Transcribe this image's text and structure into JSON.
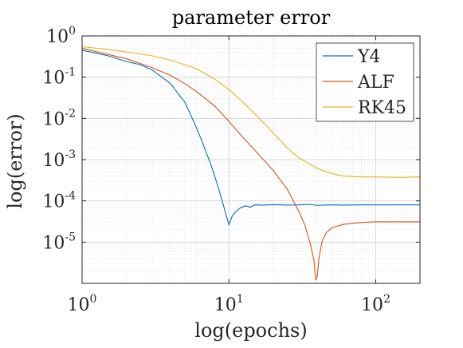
{
  "chart_data": {
    "type": "line",
    "title": "parameter error",
    "xlabel": "log(epochs)",
    "ylabel": "log(error)",
    "xscale": "log",
    "yscale": "log",
    "xlim": [
      1,
      200
    ],
    "ylim": [
      1e-06,
      1
    ],
    "grid": true,
    "minor_grid": true,
    "legend_position": "top-right",
    "x_ticks": [
      {
        "base": "10",
        "exp": "0"
      },
      {
        "base": "10",
        "exp": "1"
      },
      {
        "base": "10",
        "exp": "2"
      }
    ],
    "y_ticks": [
      {
        "value": 1,
        "base": "10",
        "exp": "0"
      },
      {
        "value": 0.1,
        "base": "10",
        "exp": "-1"
      },
      {
        "value": 0.01,
        "base": "10",
        "exp": "-2"
      },
      {
        "value": 0.001,
        "base": "10",
        "exp": "-3"
      },
      {
        "value": 0.0001,
        "base": "10",
        "exp": "-4"
      },
      {
        "value": 1e-05,
        "base": "10",
        "exp": "-5"
      }
    ],
    "series": [
      {
        "name": "Y4",
        "color": "#0072BD",
        "x": [
          1,
          1.5,
          2,
          2.5,
          3,
          3.5,
          4,
          4.5,
          5,
          5.5,
          6,
          6.5,
          7,
          7.5,
          8,
          8.5,
          9,
          9.5,
          10,
          10.5,
          11,
          11.5,
          12,
          13,
          14,
          15,
          17,
          20,
          25,
          30,
          35,
          40,
          45,
          50,
          60,
          80,
          100,
          150,
          200
        ],
        "y": [
          0.45,
          0.33,
          0.24,
          0.2,
          0.15,
          0.1,
          0.07,
          0.04,
          0.025,
          0.012,
          0.006,
          0.003,
          0.0015,
          0.0008,
          0.0004,
          0.0002,
          0.0001,
          5e-05,
          2.6e-05,
          4.2e-05,
          5.2e-05,
          6e-05,
          6.8e-05,
          7.6e-05,
          7e-05,
          8e-05,
          7.9e-05,
          8.1e-05,
          7.9e-05,
          8e-05,
          8.2e-05,
          7.8e-05,
          7.9e-05,
          8e-05,
          7.9e-05,
          8e-05,
          8e-05,
          8e-05,
          8e-05
        ]
      },
      {
        "name": "ALF",
        "color": "#D95319",
        "x": [
          1,
          2,
          3,
          4,
          5,
          6,
          8,
          10,
          12,
          15,
          20,
          25,
          30,
          33,
          36,
          38,
          39,
          40,
          41,
          43,
          46,
          50,
          60,
          80,
          100,
          150,
          200
        ],
        "y": [
          0.5,
          0.28,
          0.17,
          0.11,
          0.07,
          0.045,
          0.02,
          0.0085,
          0.004,
          0.0017,
          0.00055,
          0.00019,
          5.5e-05,
          2.5e-05,
          8.5e-06,
          3.5e-06,
          1.2e-06,
          1.5e-06,
          4e-06,
          1e-05,
          1.7e-05,
          2.2e-05,
          2.7e-05,
          3e-05,
          3.1e-05,
          3.1e-05,
          3.1e-05
        ]
      },
      {
        "name": "RK45",
        "color": "#EDB120",
        "x": [
          1,
          1.5,
          2,
          3,
          4,
          5,
          6,
          8,
          10,
          12,
          15,
          20,
          25,
          30,
          40,
          50,
          60,
          80,
          100,
          150,
          200
        ],
        "y": [
          0.55,
          0.47,
          0.41,
          0.33,
          0.26,
          0.2,
          0.16,
          0.09,
          0.05,
          0.028,
          0.013,
          0.0045,
          0.0019,
          0.0011,
          0.00061,
          0.00046,
          0.0004,
          0.00038,
          0.00038,
          0.00037,
          0.00038
        ]
      }
    ]
  }
}
